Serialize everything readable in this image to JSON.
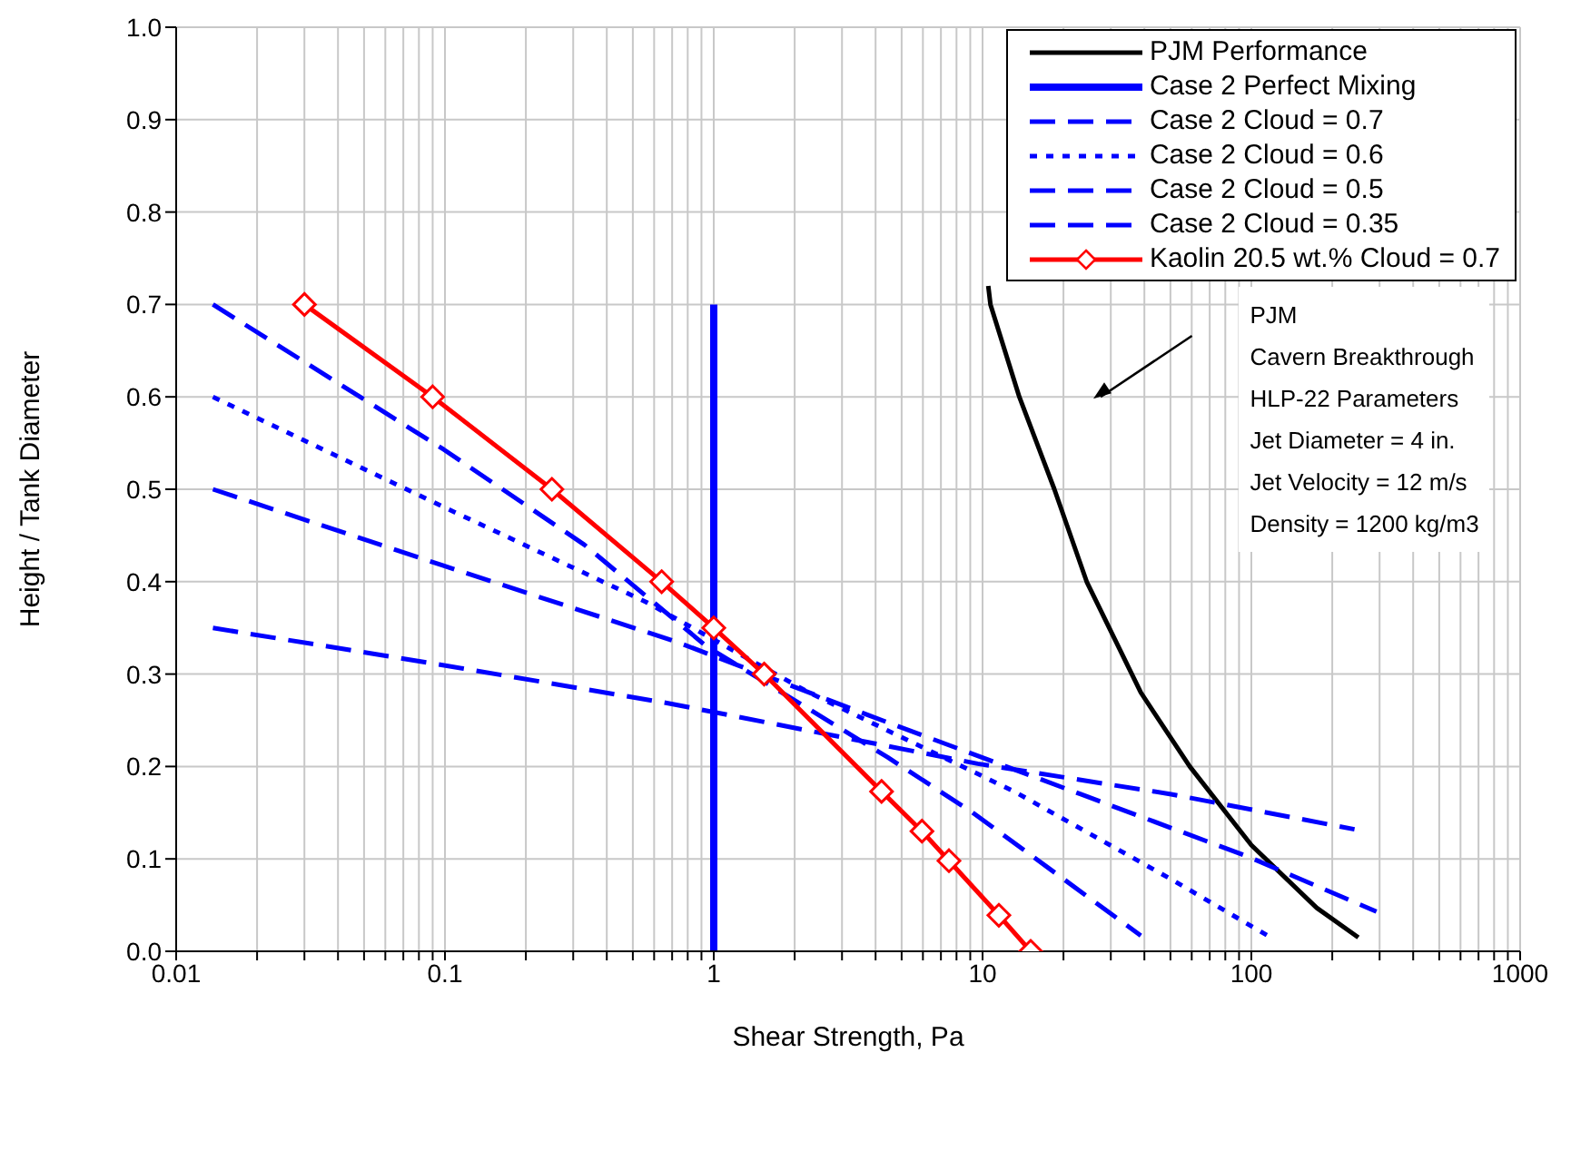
{
  "chart_data": {
    "type": "line",
    "xlabel": "Shear Strength, Pa",
    "ylabel": "Height / Tank Diameter",
    "log": "x",
    "grid": true,
    "legend": "top right",
    "xlim": [
      0.01,
      1000
    ],
    "xticks": [
      0.01,
      {
        "value": 0.02,
        "label": null
      },
      {
        "value": 0.03,
        "label": null
      },
      {
        "value": 0.04,
        "label": null
      },
      {
        "value": 0.05,
        "label": null
      },
      {
        "value": 0.06,
        "label": null
      },
      {
        "value": 0.07,
        "label": null
      },
      {
        "value": 0.08,
        "label": null
      },
      {
        "value": 0.09,
        "label": null
      },
      0.1,
      {
        "value": 0.2,
        "label": null
      },
      {
        "value": 0.3,
        "label": null
      },
      {
        "value": 0.4,
        "label": null
      },
      {
        "value": 0.5,
        "label": null
      },
      {
        "value": 0.6,
        "label": null
      },
      {
        "value": 0.7,
        "label": null
      },
      {
        "value": 0.8,
        "label": null
      },
      {
        "value": 0.9,
        "label": null
      },
      1,
      {
        "value": 2,
        "label": null
      },
      {
        "value": 3,
        "label": null
      },
      {
        "value": 4,
        "label": null
      },
      {
        "value": 5,
        "label": null
      },
      {
        "value": 6,
        "label": null
      },
      {
        "value": 7,
        "label": null
      },
      {
        "value": 8,
        "label": null
      },
      {
        "value": 9,
        "label": null
      },
      10,
      {
        "value": 20,
        "label": null
      },
      {
        "value": 30,
        "label": null
      },
      {
        "value": 40,
        "label": null
      },
      {
        "value": 50,
        "label": null
      },
      {
        "value": 60,
        "label": null
      },
      {
        "value": 70,
        "label": null
      },
      {
        "value": 80,
        "label": null
      },
      {
        "value": 90,
        "label": null
      },
      100,
      {
        "value": 200,
        "label": null
      },
      {
        "value": 300,
        "label": null
      },
      {
        "value": 400,
        "label": null
      },
      {
        "value": 500,
        "label": null
      },
      {
        "value": 600,
        "label": null
      },
      {
        "value": 700,
        "label": null
      },
      {
        "value": 800,
        "label": null
      },
      {
        "value": 900,
        "label": null
      },
      1000
    ],
    "ylim": [
      0,
      1
    ],
    "yticks": [
      {
        "value": 0,
        "label": "0.0"
      },
      {
        "value": 0.1,
        "label": "0.1"
      },
      {
        "value": 0.2,
        "label": "0.2"
      },
      {
        "value": 0.3,
        "label": "0.3"
      },
      {
        "value": 0.4,
        "label": "0.4"
      },
      {
        "value": 0.5,
        "label": "0.5"
      },
      {
        "value": 0.6,
        "label": "0.6"
      },
      {
        "value": 0.7,
        "label": "0.7"
      },
      {
        "value": 0.8,
        "label": "0.8"
      },
      {
        "value": 0.9,
        "label": "0.9"
      },
      {
        "value": 1,
        "label": "1.0"
      }
    ],
    "series": [
      {
        "name": "PJM Performance",
        "color": "#000000",
        "line_style": "solid",
        "marker": "none",
        "x": [
          10.5,
          10.7,
          13.7,
          18.5,
          24.4,
          38.8,
          59,
          100,
          175,
          250
        ],
        "values": [
          0.72,
          0.7,
          0.6,
          0.5,
          0.4,
          0.28,
          0.2,
          0.115,
          0.047,
          0.015
        ]
      },
      {
        "name": "Case 2 Perfect Mixing",
        "color": "#0000ff",
        "line_style": "solid",
        "marker": "none",
        "x": [
          1,
          1
        ],
        "values": [
          0,
          0.7
        ]
      },
      {
        "name": "Case 2 Cloud = 0.7",
        "color": "#0000ff",
        "line_style": "dashed",
        "marker": "none",
        "x": [
          0.0137,
          0.099,
          0.33,
          0.94,
          4.43,
          9.1,
          38.8
        ],
        "values": [
          0.7,
          0.543,
          0.44,
          0.33,
          0.21,
          0.151,
          0.017
        ]
      },
      {
        "name": "Case 2 Cloud = 0.6",
        "color": "#0000ff",
        "line_style": "dotted",
        "marker": "none",
        "x": [
          0.0137,
          0.102,
          0.56,
          2.26,
          13.1,
          50.3,
          118
        ],
        "values": [
          0.6,
          0.479,
          0.378,
          0.28,
          0.173,
          0.078,
          0.015
        ]
      },
      {
        "name": "Case 2 Cloud = 0.5",
        "color": "#0000ff",
        "line_style": "dashed",
        "marker": "none",
        "x": [
          0.0137,
          0.097,
          0.726,
          3.8,
          23.2,
          98,
          292
        ],
        "values": [
          0.5,
          0.418,
          0.335,
          0.255,
          0.17,
          0.102,
          0.043
        ]
      },
      {
        "name": "Case 2 Cloud = 0.35",
        "color": "#0000ff",
        "line_style": "dashed",
        "marker": "none",
        "x": [
          0.0137,
          0.097,
          0.69,
          9.6,
          50.3,
          242
        ],
        "values": [
          0.35,
          0.31,
          0.268,
          0.203,
          0.17,
          0.132
        ]
      },
      {
        "name": "Kaolin 20.5 wt.% Cloud = 0.7",
        "color": "#ff0000",
        "line_style": "solid",
        "marker": "diamond",
        "x": [
          0.03,
          0.09,
          0.25,
          0.64,
          1,
          1.54,
          4.21,
          5.95,
          7.5,
          11.5,
          15.1
        ],
        "values": [
          0.7,
          0.6,
          0.5,
          0.4,
          0.35,
          0.3,
          0.173,
          0.13,
          0.098,
          0.039,
          0
        ]
      }
    ],
    "annotations": [
      "PJM",
      "Cavern Breakthrough",
      "HLP-22 Parameters",
      "Jet Diameter = 4 in.",
      "Jet Velocity = 12 m/s",
      "Density = 1200 kg/m3"
    ]
  }
}
